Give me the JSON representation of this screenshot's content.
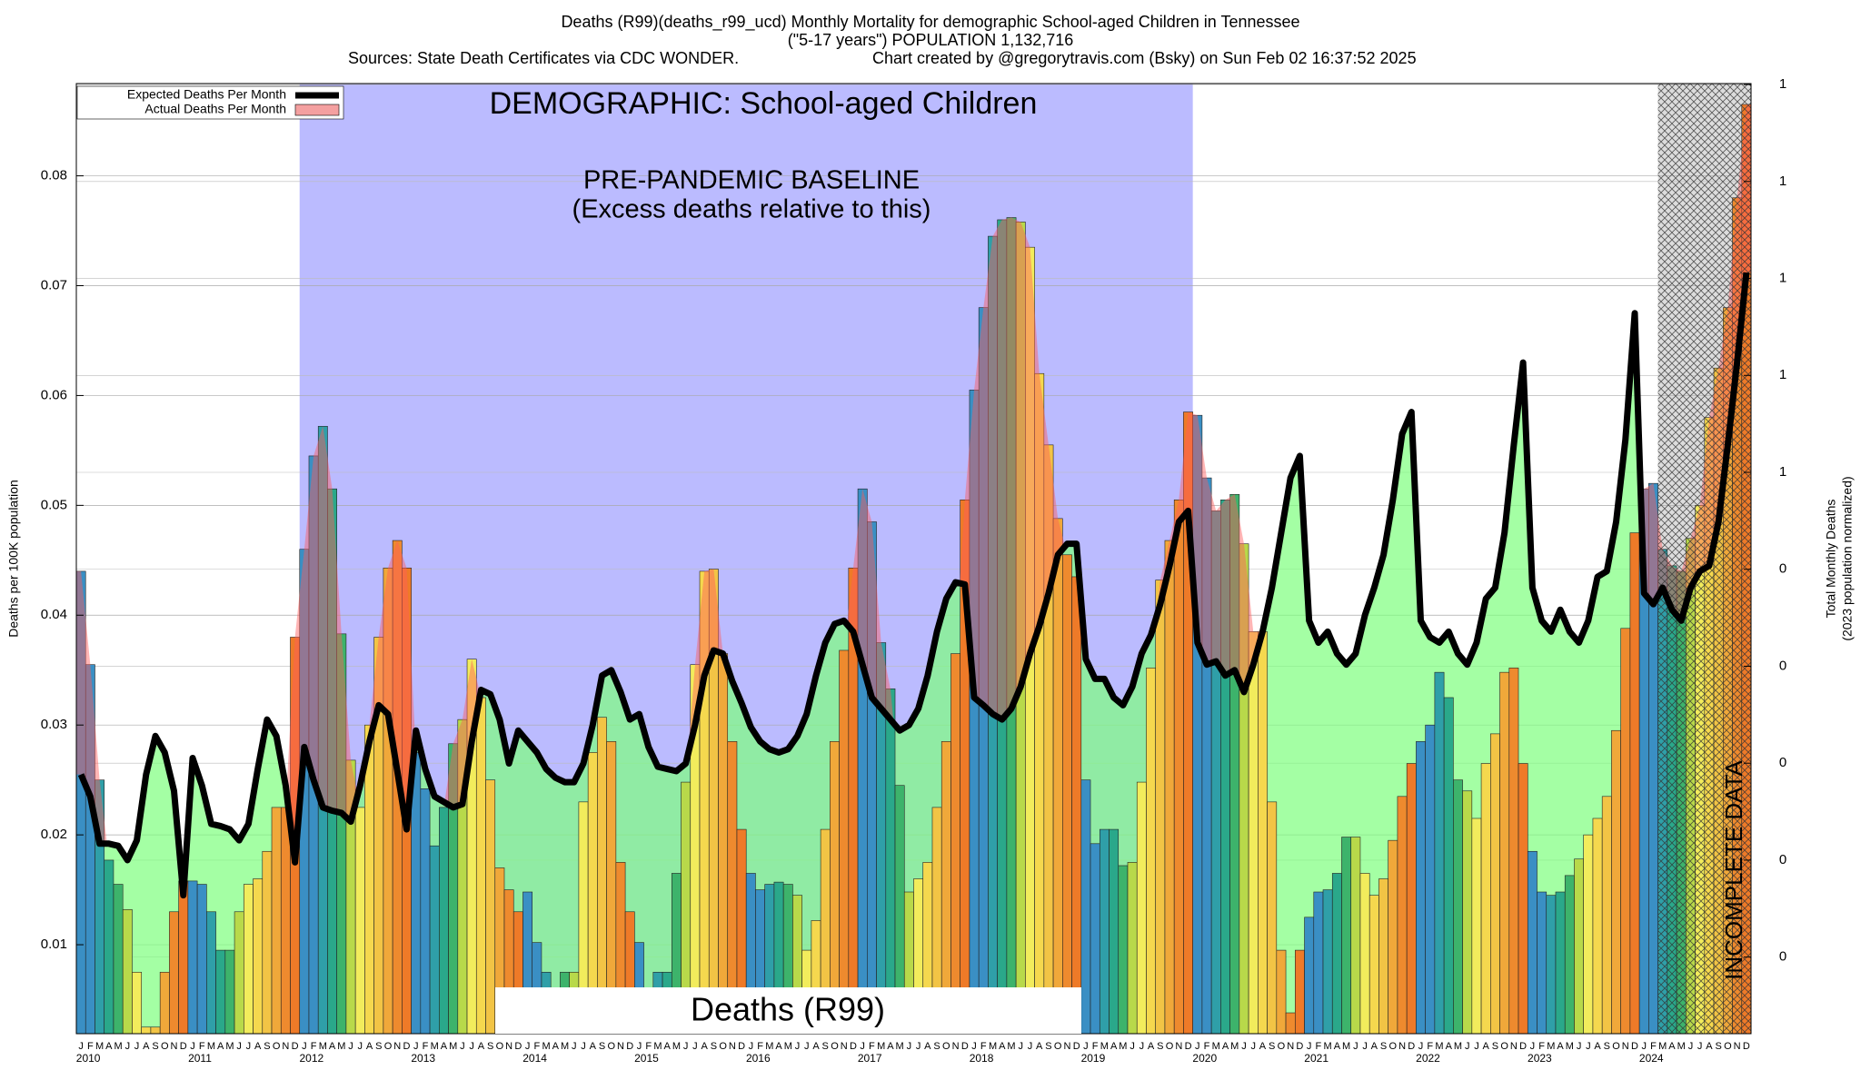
{
  "chart_data": {
    "type": "bar_line",
    "title": "Deaths (R99)(deaths_r99_ucd) Monthly Mortality for demographic School-aged Children in Tennessee",
    "subtitle": "(\"5-17 years\") POPULATION 1,132,716",
    "sources": "Sources: State Death Certificates via CDC WONDER.",
    "credit": "Chart created by @gregorytravis.com (Bsky) on Sun Feb 02 16:37:52 2025",
    "heading": "DEMOGRAPHIC: School-aged Children",
    "footer_label": "Deaths (R99)",
    "ylabel": "Deaths per 100K population",
    "y2label": [
      "Total Monthly Deaths",
      "(2023 population normalized)"
    ],
    "baseline": {
      "label": "PRE-PANDEMIC BASELINE",
      "sublabel": "(Excess deaths relative to this)",
      "start": "2012-01",
      "end": "2019-12",
      "color": "#bbbbff"
    },
    "incomplete": {
      "label": "INCOMPLETE DATA",
      "start": "2024-03"
    },
    "year_labels": [
      "2010",
      "2011",
      "2012",
      "2013",
      "2014",
      "2015",
      "2016",
      "2017",
      "2018",
      "2019",
      "2020",
      "2021",
      "2022",
      "2023",
      "2024"
    ],
    "categories": [
      "J",
      "F",
      "M",
      "A",
      "M",
      "J",
      "J",
      "A",
      "S",
      "O",
      "N",
      "D",
      "J",
      "F",
      "M",
      "A",
      "M",
      "J",
      "J",
      "A",
      "S",
      "O",
      "N",
      "D",
      "J",
      "F",
      "M",
      "A",
      "M",
      "J",
      "J",
      "A",
      "S",
      "O",
      "N",
      "D",
      "J",
      "F",
      "M",
      "A",
      "M",
      "J",
      "J",
      "A",
      "S",
      "O",
      "N",
      "D",
      "J",
      "F",
      "M",
      "A",
      "M",
      "J",
      "J",
      "A",
      "S",
      "O",
      "N",
      "D",
      "J",
      "F",
      "M",
      "A",
      "M",
      "J",
      "J",
      "A",
      "S",
      "O",
      "N",
      "D",
      "J",
      "F",
      "M",
      "A",
      "M",
      "J",
      "J",
      "A",
      "S",
      "O",
      "N",
      "D",
      "J",
      "F",
      "M",
      "A",
      "M",
      "J",
      "J",
      "A",
      "S",
      "O",
      "N",
      "D",
      "J",
      "F",
      "M",
      "A",
      "M",
      "J",
      "J",
      "A",
      "S",
      "O",
      "N",
      "D",
      "J",
      "F",
      "M",
      "A",
      "M",
      "J",
      "J",
      "A",
      "S",
      "O",
      "N",
      "D",
      "J",
      "F",
      "M",
      "A",
      "M",
      "J",
      "J",
      "A",
      "S",
      "O",
      "N",
      "D",
      "J",
      "F",
      "M",
      "A",
      "M",
      "J",
      "J",
      "A",
      "S",
      "O",
      "N",
      "D",
      "J",
      "F",
      "M",
      "A",
      "M",
      "J",
      "J",
      "A",
      "S",
      "O",
      "N",
      "D",
      "J",
      "F",
      "M",
      "A",
      "M",
      "J",
      "J",
      "A",
      "S",
      "O",
      "N",
      "D",
      "J",
      "F",
      "M",
      "A",
      "M",
      "J",
      "J",
      "A",
      "S",
      "O",
      "N",
      "D"
    ],
    "bar_colors": [
      "#3a8fc4",
      "#3a8fc4",
      "#2f9fa8",
      "#2aa88a",
      "#3db36b",
      "#b8d94a",
      "#f2ec5c",
      "#f5d84e",
      "#f2c445",
      "#f0a83a",
      "#ee8a2e",
      "#ee7a28"
    ],
    "series": [
      {
        "name": "Actual Deaths Per Month",
        "color": "#f4a0a0",
        "values": [
          0.044,
          0.0355,
          0.025,
          0.0177,
          0.0155,
          0.0132,
          0.0075,
          0.0025,
          0.0025,
          0.0075,
          0.013,
          0.0158,
          0.0158,
          0.0155,
          0.013,
          0.0095,
          0.0095,
          0.013,
          0.0155,
          0.016,
          0.0185,
          0.0225,
          0.0225,
          0.038,
          0.046,
          0.0545,
          0.0572,
          0.0515,
          0.0383,
          0.0268,
          0.0225,
          0.03,
          0.038,
          0.0443,
          0.0468,
          0.0443,
          0.0275,
          0.0242,
          0.019,
          0.0225,
          0.0283,
          0.0305,
          0.036,
          0.0325,
          0.025,
          0.017,
          0.015,
          0.013,
          0.0148,
          0.0102,
          0.0075,
          0.0045,
          0.0075,
          0.0075,
          0.023,
          0.0275,
          0.0307,
          0.0285,
          0.0175,
          0.013,
          0.0102,
          0.0045,
          0.0075,
          0.0075,
          0.0165,
          0.0248,
          0.0355,
          0.044,
          0.0442,
          0.0365,
          0.0285,
          0.0205,
          0.0165,
          0.015,
          0.0155,
          0.0157,
          0.0155,
          0.0145,
          0.0095,
          0.0122,
          0.0205,
          0.0285,
          0.0368,
          0.0443,
          0.0515,
          0.0485,
          0.0375,
          0.0333,
          0.0245,
          0.0148,
          0.016,
          0.0175,
          0.0225,
          0.0285,
          0.0365,
          0.0505,
          0.0605,
          0.068,
          0.0745,
          0.076,
          0.0762,
          0.0758,
          0.0735,
          0.062,
          0.0555,
          0.0488,
          0.0455,
          0.0435,
          0.025,
          0.0192,
          0.0205,
          0.0205,
          0.0172,
          0.0175,
          0.0248,
          0.0352,
          0.0432,
          0.0468,
          0.0505,
          0.0585,
          0.0582,
          0.0525,
          0.0495,
          0.0505,
          0.051,
          0.0465,
          0.0385,
          0.0385,
          0.023,
          0.0095,
          0.0038,
          0.0095,
          0.0125,
          0.0148,
          0.015,
          0.0165,
          0.0198,
          0.0198,
          0.0165,
          0.0145,
          0.016,
          0.0195,
          0.0235,
          0.0265,
          0.0285,
          0.03,
          0.0348,
          0.0325,
          0.025,
          0.024,
          0.0215,
          0.0265,
          0.0292,
          0.0348,
          0.0352,
          0.0265,
          0.0185,
          0.0148,
          0.0145,
          0.0148,
          0.0163,
          0.0178,
          0.02,
          0.0215,
          0.0235,
          0.0295,
          0.0388,
          0.0475,
          0.0515,
          0.052,
          0.046,
          0.0445,
          0.044,
          0.047,
          0.05,
          0.058,
          0.0625,
          0.068,
          0.078,
          0.0865
        ]
      },
      {
        "name": "Expected Deaths Per Month",
        "color": "#000000",
        "values": [
          0.0255,
          0.0235,
          0.0192,
          0.0192,
          0.019,
          0.0177,
          0.0195,
          0.0255,
          0.029,
          0.0275,
          0.024,
          0.0145,
          0.027,
          0.0245,
          0.021,
          0.0208,
          0.0205,
          0.0195,
          0.021,
          0.026,
          0.0305,
          0.029,
          0.0245,
          0.0175,
          0.028,
          0.025,
          0.0225,
          0.0222,
          0.022,
          0.0212,
          0.0245,
          0.0285,
          0.0318,
          0.031,
          0.0258,
          0.0205,
          0.0295,
          0.026,
          0.0235,
          0.023,
          0.0225,
          0.0228,
          0.0285,
          0.0332,
          0.0328,
          0.0305,
          0.0265,
          0.0295,
          0.0285,
          0.0275,
          0.026,
          0.0252,
          0.0248,
          0.0248,
          0.0265,
          0.03,
          0.0345,
          0.035,
          0.033,
          0.0305,
          0.031,
          0.028,
          0.0262,
          0.026,
          0.0258,
          0.0265,
          0.03,
          0.0345,
          0.0368,
          0.0365,
          0.034,
          0.032,
          0.0298,
          0.0285,
          0.0278,
          0.0275,
          0.0278,
          0.029,
          0.031,
          0.0345,
          0.0375,
          0.0392,
          0.0395,
          0.0385,
          0.0355,
          0.0325,
          0.0315,
          0.0305,
          0.0295,
          0.03,
          0.0315,
          0.0345,
          0.0385,
          0.0415,
          0.043,
          0.0428,
          0.0325,
          0.0318,
          0.031,
          0.0305,
          0.0315,
          0.0335,
          0.0365,
          0.039,
          0.042,
          0.0455,
          0.0465,
          0.0465,
          0.036,
          0.0342,
          0.0342,
          0.0325,
          0.0318,
          0.0335,
          0.0365,
          0.0382,
          0.041,
          0.0445,
          0.0485,
          0.0495,
          0.0375,
          0.0355,
          0.0358,
          0.0345,
          0.035,
          0.033,
          0.0355,
          0.0385,
          0.0425,
          0.0475,
          0.0525,
          0.0545,
          0.0395,
          0.0375,
          0.0385,
          0.0365,
          0.0355,
          0.0365,
          0.04,
          0.0425,
          0.0455,
          0.0505,
          0.0565,
          0.0585,
          0.0395,
          0.038,
          0.0375,
          0.0385,
          0.0365,
          0.0355,
          0.0375,
          0.0415,
          0.0425,
          0.0475,
          0.0555,
          0.063,
          0.0425,
          0.0395,
          0.0385,
          0.0405,
          0.0385,
          0.0375,
          0.0395,
          0.0435,
          0.044,
          0.0485,
          0.056,
          0.0675,
          0.042,
          0.041,
          0.0425,
          0.0405,
          0.0395,
          0.0425,
          0.044,
          0.0445,
          0.0485,
          0.0555,
          0.063,
          0.0712
        ]
      }
    ],
    "ylim": [
      0.0019,
      0.0884
    ],
    "yticks": [
      0.01,
      0.02,
      0.03,
      0.04,
      0.05,
      0.06,
      0.07,
      0.08
    ],
    "y2lim": [
      0.021,
      1.001
    ],
    "y2ticks": [
      1,
      {
        "value": 0.9,
        "label": "1"
      },
      {
        "value": 0.8,
        "label": "1"
      },
      {
        "value": 0.7,
        "label": "1"
      },
      {
        "value": 0.6,
        "label": "1"
      },
      {
        "value": 0.5,
        "label": "0"
      },
      {
        "value": 0.4,
        "label": "0"
      },
      {
        "value": 0.3,
        "label": "0"
      },
      {
        "value": 0.2,
        "label": "0"
      },
      {
        "value": 0.1,
        "label": "0"
      }
    ],
    "grid": true,
    "legend": "top-left"
  }
}
